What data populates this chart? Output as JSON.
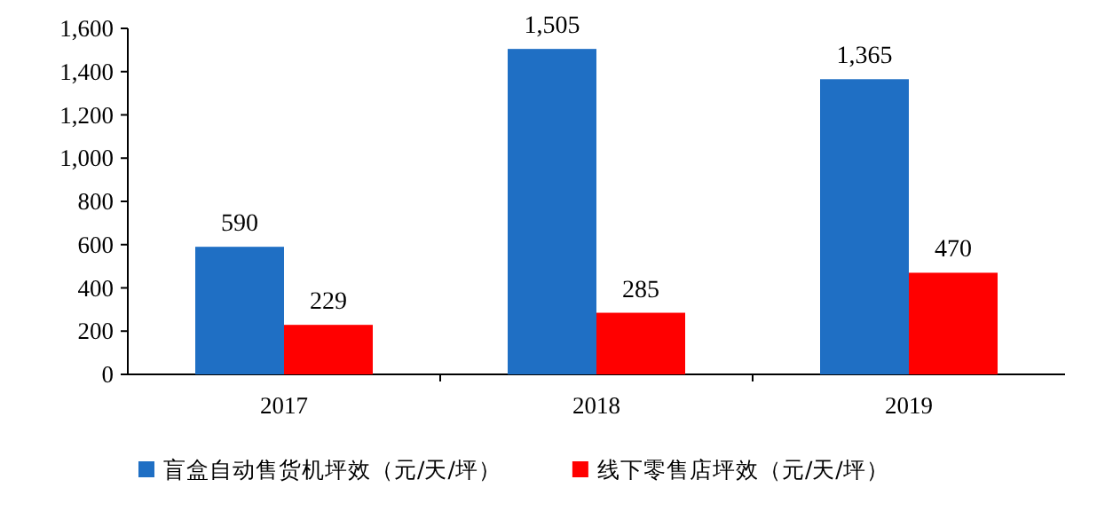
{
  "chart_data": {
    "type": "bar",
    "categories": [
      "2017",
      "2018",
      "2019"
    ],
    "series": [
      {
        "name": "盲盒自动售货机坪效（元/天/坪）",
        "color": "#1f6fc4",
        "values": [
          590,
          1505,
          1365
        ],
        "value_labels": [
          "590",
          "1,505",
          "1,365"
        ]
      },
      {
        "name": "线下零售店坪效（元/天/坪）",
        "color": "#ff0000",
        "values": [
          229,
          285,
          470
        ],
        "value_labels": [
          "229",
          "285",
          "470"
        ]
      }
    ],
    "ylim": [
      0,
      1600
    ],
    "yticks": [
      0,
      200,
      400,
      600,
      800,
      {
        "value": 1000,
        "label": "1,000"
      },
      {
        "value": 1200,
        "label": "1,200"
      },
      {
        "value": 1400,
        "label": "1,400"
      },
      {
        "value": 1600,
        "label": "1,600"
      }
    ],
    "legend": "bottom"
  }
}
